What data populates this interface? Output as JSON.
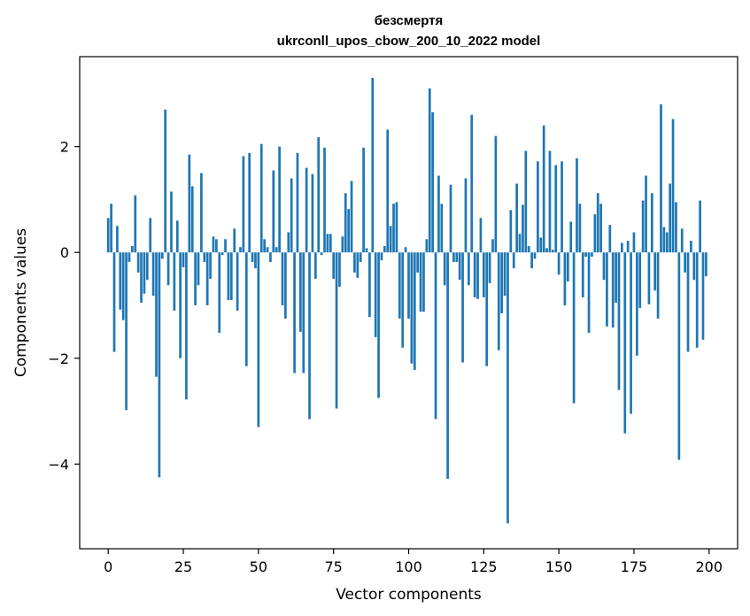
{
  "chart_data": {
    "type": "bar",
    "title": "безсмертя",
    "subtitle": "ukrconll_upos_cbow_200_10_2022 model",
    "xlabel": "Vector components",
    "ylabel": "Components values",
    "xlim": [
      -9.5,
      209.5
    ],
    "ylim": [
      -5.6,
      3.7
    ],
    "xticks": [
      0,
      25,
      50,
      75,
      100,
      125,
      150,
      175,
      200
    ],
    "xtick_labels": [
      "0",
      "25",
      "50",
      "75",
      "100",
      "125",
      "150",
      "175",
      "200"
    ],
    "yticks": [
      -4,
      -2,
      0,
      2
    ],
    "ytick_labels": [
      "−4",
      "−2",
      "0",
      "2"
    ],
    "grid": false,
    "bar_color": "#1f77b4",
    "x": [
      0,
      1,
      2,
      3,
      4,
      5,
      6,
      7,
      8,
      9,
      10,
      11,
      12,
      13,
      14,
      15,
      16,
      17,
      18,
      19,
      20,
      21,
      22,
      23,
      24,
      25,
      26,
      27,
      28,
      29,
      30,
      31,
      32,
      33,
      34,
      35,
      36,
      37,
      38,
      39,
      40,
      41,
      42,
      43,
      44,
      45,
      46,
      47,
      48,
      49,
      50,
      51,
      52,
      53,
      54,
      55,
      56,
      57,
      58,
      59,
      60,
      61,
      62,
      63,
      64,
      65,
      66,
      67,
      68,
      69,
      70,
      71,
      72,
      73,
      74,
      75,
      76,
      77,
      78,
      79,
      80,
      81,
      82,
      83,
      84,
      85,
      86,
      87,
      88,
      89,
      90,
      91,
      92,
      93,
      94,
      95,
      96,
      97,
      98,
      99,
      100,
      101,
      102,
      103,
      104,
      105,
      106,
      107,
      108,
      109,
      110,
      111,
      112,
      113,
      114,
      115,
      116,
      117,
      118,
      119,
      120,
      121,
      122,
      123,
      124,
      125,
      126,
      127,
      128,
      129,
      130,
      131,
      132,
      133,
      134,
      135,
      136,
      137,
      138,
      139,
      140,
      141,
      142,
      143,
      144,
      145,
      146,
      147,
      148,
      149,
      150,
      151,
      152,
      153,
      154,
      155,
      156,
      157,
      158,
      159,
      160,
      161,
      162,
      163,
      164,
      165,
      166,
      167,
      168,
      169,
      170,
      171,
      172,
      173,
      174,
      175,
      176,
      177,
      178,
      179,
      180,
      181,
      182,
      183,
      184,
      185,
      186,
      187,
      188,
      189,
      190,
      191,
      192,
      193,
      194,
      195,
      196,
      197,
      198,
      199
    ],
    "values": [
      0.65,
      0.92,
      -1.88,
      0.5,
      -1.08,
      -1.28,
      -2.98,
      -0.18,
      0.12,
      1.08,
      -0.38,
      -0.95,
      -0.78,
      -0.52,
      0.65,
      -0.82,
      -2.35,
      -4.25,
      -0.12,
      2.7,
      -0.62,
      1.15,
      -1.1,
      0.6,
      -2.0,
      -0.28,
      -2.78,
      1.85,
      1.25,
      -1.0,
      -0.62,
      1.5,
      -0.18,
      -1.0,
      -0.5,
      0.3,
      0.25,
      -1.52,
      -0.05,
      0.25,
      -0.9,
      -0.9,
      0.45,
      -1.1,
      0.1,
      1.82,
      -2.15,
      1.88,
      -0.18,
      -0.3,
      -3.3,
      2.05,
      0.25,
      0.1,
      -0.18,
      1.55,
      0.1,
      2.0,
      -1.0,
      -1.25,
      0.38,
      1.4,
      -2.28,
      1.88,
      -1.5,
      -2.28,
      1.6,
      -3.15,
      1.48,
      -0.5,
      2.18,
      -0.05,
      1.98,
      0.35,
      0.35,
      -0.5,
      -2.95,
      -0.65,
      0.3,
      1.12,
      0.82,
      1.35,
      -0.38,
      -0.48,
      -0.18,
      1.98,
      0.08,
      -1.22,
      3.3,
      -1.6,
      -2.75,
      -0.15,
      0.12,
      2.32,
      0.5,
      0.92,
      0.95,
      -1.25,
      -1.8,
      0.1,
      -1.25,
      -2.1,
      -2.22,
      -0.38,
      -1.12,
      -1.12,
      0.25,
      3.1,
      2.65,
      -3.15,
      1.45,
      0.92,
      -0.62,
      -4.28,
      1.28,
      -0.18,
      -0.18,
      -0.52,
      -2.08,
      1.4,
      -0.62,
      2.6,
      -0.85,
      -0.88,
      0.65,
      -0.85,
      -2.15,
      -0.58,
      0.25,
      2.2,
      -1.85,
      -1.15,
      -0.82,
      -5.12,
      0.8,
      -0.3,
      1.3,
      0.35,
      0.9,
      1.92,
      0.12,
      -0.3,
      -0.12,
      1.72,
      0.28,
      2.4,
      0.08,
      1.92,
      0.05,
      1.65,
      -0.42,
      1.72,
      -1.0,
      -0.55,
      0.58,
      -2.85,
      1.78,
      0.92,
      -0.85,
      -0.08,
      -1.52,
      -0.08,
      0.72,
      1.12,
      0.92,
      -0.52,
      -1.4,
      0.52,
      -1.42,
      -0.95,
      -2.6,
      0.18,
      -3.42,
      0.22,
      -3.05,
      0.38,
      -1.95,
      -1.05,
      0.98,
      1.45,
      -0.98,
      1.12,
      -0.72,
      -1.25,
      2.8,
      0.48,
      0.38,
      1.3,
      2.52,
      0.95,
      -3.92,
      0.45,
      -0.38,
      -1.88,
      0.22,
      -0.52,
      -1.8,
      0.98,
      -1.65,
      -0.45
    ]
  }
}
